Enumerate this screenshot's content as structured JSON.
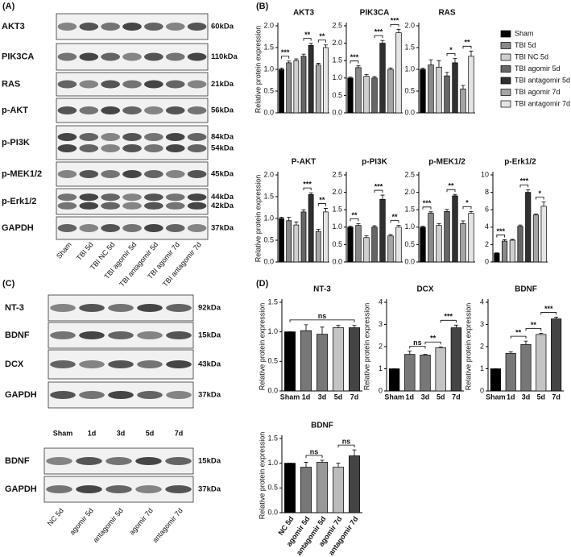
{
  "panels": [
    "(A)",
    "(B)",
    "(C)",
    "(D)"
  ],
  "blots": [
    {
      "rows": [
        {
          "label": "AKT3",
          "kda": [
            "60kDa"
          ]
        },
        {
          "label": "PIK3CA",
          "kda": [
            "110kDa"
          ]
        },
        {
          "label": "RAS",
          "kda": [
            "21kDa"
          ]
        },
        {
          "label": "p-AKT",
          "kda": [
            "56kDa"
          ]
        },
        {
          "label": "p-PI3K",
          "kda": [
            "84kDa",
            "54kDa"
          ]
        },
        {
          "label": "p-MEK1/2",
          "kda": [
            "45kDa"
          ]
        },
        {
          "label": "p-Erk1/2",
          "kda": [
            "44kDa",
            "42kDa"
          ]
        },
        {
          "label": "GAPDH",
          "kda": [
            "37kDa"
          ]
        }
      ],
      "lanes": [
        "Sham",
        "TBI 5d",
        "TBI NC 5d",
        "TBI agomir 5d",
        "TBI antagomir 5d",
        "TBI agomir 7d",
        "TBI antagomir 7d"
      ]
    },
    {
      "rows": [
        {
          "label": "NT-3",
          "kda": [
            "92kDa"
          ]
        },
        {
          "label": "BDNF",
          "kda": [
            "15kDa"
          ]
        },
        {
          "label": "DCX",
          "kda": [
            "43kDa"
          ]
        },
        {
          "label": "GAPDH",
          "kda": [
            "37kDa"
          ]
        }
      ],
      "lanes": [
        "Sham",
        "1d",
        "3d",
        "5d",
        "7d"
      ]
    },
    {
      "rows": [
        {
          "label": "BDNF",
          "kda": [
            "15kDa"
          ]
        },
        {
          "label": "GAPDH",
          "kda": [
            "37kDa"
          ]
        }
      ],
      "lanes": [
        "NC 5d",
        "agomir 5d",
        "antagomir 5d",
        "agomir 7d",
        "antagomir 7d"
      ]
    }
  ],
  "legend": {
    "items": [
      {
        "name": "Sham",
        "color": "#000000"
      },
      {
        "name": "TBI 5d",
        "color": "#8a8a8a"
      },
      {
        "name": "TBI NC 5d",
        "color": "#cfcfcf"
      },
      {
        "name": "TBI agomir 5d",
        "color": "#666666"
      },
      {
        "name": "TBI antagomir 5d",
        "color": "#303030"
      },
      {
        "name": "TBI agomir 7d",
        "color": "#a5a5a5"
      },
      {
        "name": "TBI antagomir 7d",
        "color": "#e4e4e4"
      }
    ]
  },
  "chart_data": [
    {
      "type": "bar",
      "title": "AKT3",
      "ylabel": "Relative protein expression",
      "values": [
        1.0,
        1.15,
        1.2,
        1.3,
        1.55,
        1.1,
        1.5
      ],
      "errors": [
        0.03,
        0.04,
        0.04,
        0.05,
        0.05,
        0.04,
        0.06
      ],
      "ylim": [
        0,
        2
      ],
      "yticks": [
        {
          "value": 0,
          "label": "0.0"
        },
        0.5,
        {
          "value": 1,
          "label": "1.0"
        },
        1.5,
        {
          "value": 2,
          "label": "2.0"
        }
      ],
      "annotations": [
        {
          "pair": [
            0,
            1
          ],
          "label": "***"
        },
        {
          "pair": [
            3,
            4
          ],
          "label": "**"
        },
        {
          "pair": [
            5,
            6
          ],
          "label": "**"
        }
      ]
    },
    {
      "type": "bar",
      "title": "PIK3CA",
      "values": [
        1.0,
        1.3,
        1.05,
        1.0,
        2.0,
        1.25,
        2.3
      ],
      "errors": [
        0.03,
        0.05,
        0.05,
        0.04,
        0.08,
        0.04,
        0.1
      ],
      "ylim": [
        0,
        2.5
      ],
      "yticks": [
        {
          "value": 0,
          "label": "0.0"
        },
        0.5,
        {
          "value": 1,
          "label": "1.0"
        },
        1.5,
        {
          "value": 2,
          "label": "2.0"
        },
        2.5
      ],
      "annotations": [
        {
          "pair": [
            0,
            1
          ],
          "label": "***"
        },
        {
          "pair": [
            3,
            4
          ],
          "label": "***"
        },
        {
          "pair": [
            5,
            6
          ],
          "label": "***"
        }
      ]
    },
    {
      "type": "bar",
      "title": "RAS",
      "values": [
        1.0,
        1.1,
        1.05,
        0.85,
        1.15,
        0.55,
        1.3
      ],
      "errors": [
        0.03,
        0.12,
        0.15,
        0.08,
        0.1,
        0.08,
        0.12
      ],
      "ylim": [
        0,
        2
      ],
      "yticks": [
        {
          "value": 0,
          "label": "0.0"
        },
        0.5,
        {
          "value": 1,
          "label": "1.0"
        },
        1.5,
        {
          "value": 2,
          "label": "2.0"
        }
      ],
      "annotations": [
        {
          "pair": [
            3,
            4
          ],
          "label": "*"
        },
        {
          "pair": [
            5,
            6
          ],
          "label": "**"
        }
      ]
    },
    {
      "type": "bar",
      "title": "P-AKT",
      "ylabel": "Relative protein expression",
      "values": [
        1.0,
        0.95,
        0.85,
        1.15,
        1.55,
        0.7,
        1.15
      ],
      "errors": [
        0.03,
        0.08,
        0.07,
        0.05,
        0.04,
        0.05,
        0.08
      ],
      "ylim": [
        0,
        2
      ],
      "yticks": [
        {
          "value": 0,
          "label": "0.0"
        },
        0.5,
        {
          "value": 1,
          "label": "1.0"
        },
        1.5,
        {
          "value": 2,
          "label": "2.0"
        }
      ],
      "annotations": [
        {
          "pair": [
            3,
            4
          ],
          "label": "***"
        },
        {
          "pair": [
            5,
            6
          ],
          "label": "**"
        }
      ]
    },
    {
      "type": "bar",
      "title": "p-PI3K",
      "values": [
        1.0,
        1.05,
        0.7,
        1.0,
        1.8,
        0.75,
        1.0
      ],
      "errors": [
        0.03,
        0.05,
        0.05,
        0.04,
        0.12,
        0.04,
        0.05
      ],
      "ylim": [
        0,
        2.5
      ],
      "yticks": [
        {
          "value": 0,
          "label": "0.0"
        },
        0.5,
        {
          "value": 1,
          "label": "1.0"
        },
        1.5,
        {
          "value": 2,
          "label": "2.0"
        },
        2.5
      ],
      "annotations": [
        {
          "pair": [
            0,
            1
          ],
          "label": "**"
        },
        {
          "pair": [
            3,
            4
          ],
          "label": "***"
        },
        {
          "pair": [
            5,
            6
          ],
          "label": "**"
        }
      ]
    },
    {
      "type": "bar",
      "title": "p-MEK1/2",
      "values": [
        1.0,
        1.4,
        1.05,
        1.45,
        1.9,
        1.1,
        1.4
      ],
      "errors": [
        0.03,
        0.04,
        0.05,
        0.06,
        0.04,
        0.08,
        0.05
      ],
      "ylim": [
        0,
        2.5
      ],
      "yticks": [
        {
          "value": 0,
          "label": "0.0"
        },
        0.5,
        {
          "value": 1,
          "label": "1.0"
        },
        1.5,
        {
          "value": 2,
          "label": "2.0"
        },
        2.5
      ],
      "annotations": [
        {
          "pair": [
            0,
            1
          ],
          "label": "***"
        },
        {
          "pair": [
            3,
            4
          ],
          "label": "**"
        },
        {
          "pair": [
            5,
            6
          ],
          "label": "*"
        }
      ]
    },
    {
      "type": "bar",
      "title": "p-Erk1/2",
      "values": [
        1.0,
        2.4,
        2.5,
        4.1,
        8.0,
        5.4,
        6.4
      ],
      "errors": [
        0.05,
        0.15,
        0.1,
        0.15,
        0.3,
        0.1,
        0.5
      ],
      "ylim": [
        0,
        10
      ],
      "yticks": [
        0,
        2,
        4,
        6,
        8,
        10
      ],
      "annotations": [
        {
          "pair": [
            0,
            1
          ],
          "label": "***"
        },
        {
          "pair": [
            3,
            4
          ],
          "label": "***"
        },
        {
          "pair": [
            5,
            6
          ],
          "label": "*"
        }
      ]
    },
    {
      "type": "bar",
      "title": "NT-3",
      "ylabel": "Relative protein expression",
      "categories": [
        "Sham",
        "1d",
        "3d",
        "5d",
        "7d"
      ],
      "colors": [
        "#000000",
        "#777777",
        "#777777",
        "#c4c4c4",
        "#444444"
      ],
      "values": [
        1.0,
        1.02,
        0.96,
        1.07,
        1.07
      ],
      "errors": [
        0.0,
        0.1,
        0.12,
        0.04,
        0.04
      ],
      "ylim": [
        0,
        1.5
      ],
      "yticks": [
        {
          "value": 0,
          "label": "0.0"
        },
        0.5,
        {
          "value": 1,
          "label": "1.0"
        },
        1.5
      ],
      "annotations": [
        {
          "pair": [
            0,
            4
          ],
          "label": "ns"
        }
      ]
    },
    {
      "type": "bar",
      "title": "DCX",
      "ylabel": "Relative protein expression",
      "categories": [
        "Sham",
        "1d",
        "3d",
        "5d",
        "7d"
      ],
      "colors": [
        "#000000",
        "#777777",
        "#777777",
        "#c4c4c4",
        "#444444"
      ],
      "values": [
        1.0,
        1.65,
        1.62,
        1.95,
        2.85
      ],
      "errors": [
        0.0,
        0.15,
        0.03,
        0.04,
        0.12
      ],
      "ylim": [
        0,
        4
      ],
      "yticks": [
        0,
        1,
        2,
        3,
        4
      ],
      "annotations": [
        {
          "pair": [
            1,
            2
          ],
          "label": "ns"
        },
        {
          "pair": [
            2,
            3
          ],
          "label": "**"
        },
        {
          "pair": [
            3,
            4
          ],
          "label": "***"
        }
      ]
    },
    {
      "type": "bar",
      "title": "BDNF",
      "ylabel": "Relative protein expression",
      "categories": [
        "Sham",
        "1d",
        "3d",
        "5d",
        "7d"
      ],
      "colors": [
        "#000000",
        "#777777",
        "#777777",
        "#c4c4c4",
        "#444444"
      ],
      "values": [
        1.0,
        1.7,
        2.1,
        2.55,
        3.25
      ],
      "errors": [
        0.0,
        0.06,
        0.15,
        0.05,
        0.08
      ],
      "ylim": [
        0,
        4
      ],
      "yticks": [
        0,
        1,
        2,
        3,
        4
      ],
      "annotations": [
        {
          "pair": [
            1,
            2
          ],
          "label": "**"
        },
        {
          "pair": [
            2,
            3
          ],
          "label": "**"
        },
        {
          "pair": [
            3,
            4
          ],
          "label": "***"
        }
      ]
    },
    {
      "type": "bar",
      "title": "BDNF",
      "ylabel": "Relative protein expression",
      "categories": [
        "NC 5d",
        "agomir 5d",
        "antagomir 5d",
        "agomir 7d",
        "antagomir 7d"
      ],
      "colors": [
        "#000000",
        "#777777",
        "#999999",
        "#bbbbbb",
        "#444444"
      ],
      "values": [
        1.0,
        0.92,
        1.02,
        0.92,
        1.15
      ],
      "errors": [
        0.0,
        0.1,
        0.04,
        0.08,
        0.12
      ],
      "ylim": [
        0,
        1.5
      ],
      "yticks": [
        {
          "value": 0,
          "label": "0.0"
        },
        0.5,
        {
          "value": 1,
          "label": "1.0"
        },
        1.5
      ],
      "annotations": [
        {
          "pair": [
            1,
            2
          ],
          "label": "ns"
        },
        {
          "pair": [
            3,
            4
          ],
          "label": "ns"
        }
      ]
    }
  ]
}
